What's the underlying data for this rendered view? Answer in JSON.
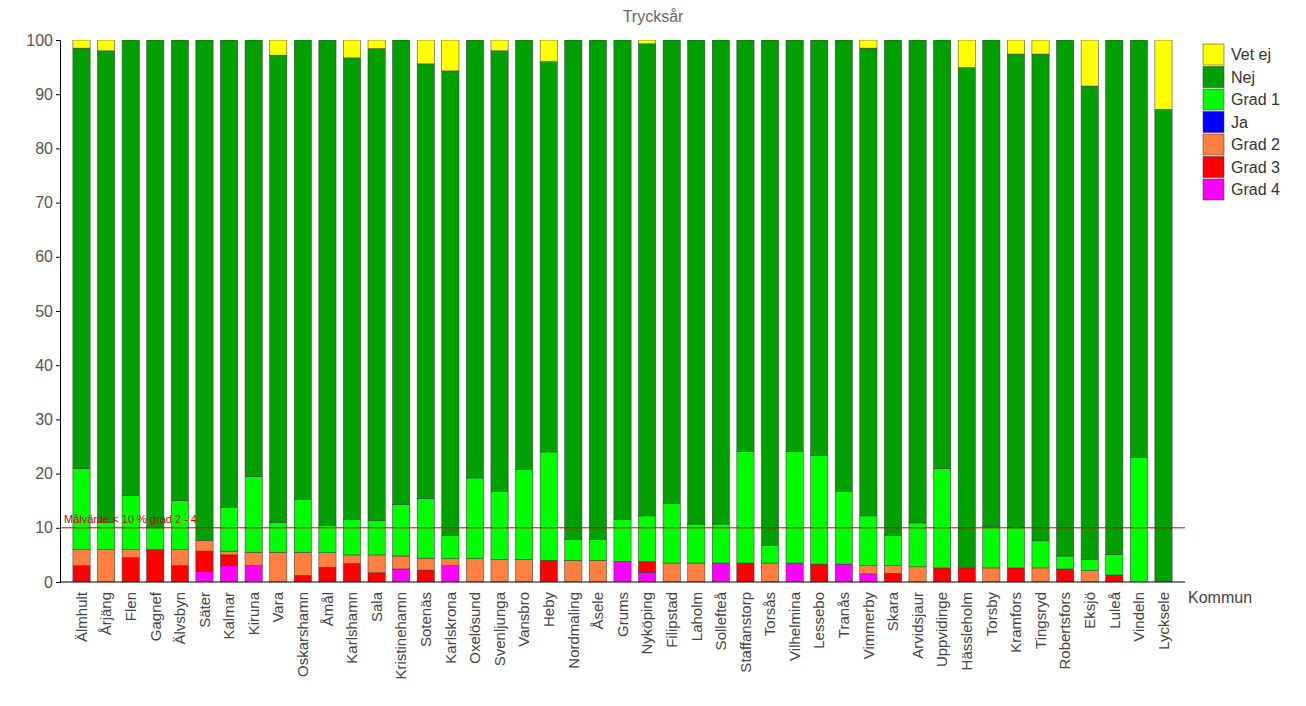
{
  "chart_data": {
    "type": "bar",
    "stacked": true,
    "title": "Trycksår",
    "x_label": "Kommun",
    "legend": "upper right",
    "grid": false,
    "ylim": [
      0,
      100
    ],
    "yticks": [
      0,
      10,
      20,
      30,
      40,
      50,
      60,
      70,
      80,
      90,
      100
    ],
    "annotations": [
      {
        "text": "Målvärde < 10 % grad 2 - 4",
        "y": 10
      }
    ],
    "categories": [
      "Älmhult",
      "Årjäng",
      "Flen",
      "Gagnef",
      "Älvsbyn",
      "Säter",
      "Kalmar",
      "Kiruna",
      "Vara",
      "Oskarshamn",
      "Åmål",
      "Karlshamn",
      "Sala",
      "Kristinehamn",
      "Sotenäs",
      "Karlskrona",
      "Oxelösund",
      "Svenljunga",
      "Vansbro",
      "Heby",
      "Nordmaling",
      "Åsele",
      "Grums",
      "Nyköping",
      "Filipstad",
      "Laholm",
      "Sollefteå",
      "Staffanstorp",
      "Torsås",
      "Vilhelmina",
      "Lessebo",
      "Tranås",
      "Vimmerby",
      "Skara",
      "Arvidsjaur",
      "Uppvidinge",
      "Hässleholm",
      "Torsby",
      "Kramfors",
      "Tingsryd",
      "Robertsfors",
      "Eksjö",
      "Luleå",
      "Vindeln",
      "Lycksele"
    ],
    "series": [
      {
        "name": "Grad 4",
        "color": "#ff00ff",
        "values": [
          0,
          0,
          0,
          0,
          0,
          2,
          3,
          3,
          0,
          0,
          0,
          0,
          0,
          2.4,
          0,
          3,
          0,
          0,
          0,
          0,
          0,
          0,
          3.8,
          1.8,
          0,
          0,
          3.5,
          0,
          0,
          3.5,
          0,
          3.3,
          1.5,
          0,
          0,
          0,
          0,
          0,
          0,
          0,
          0,
          0,
          0,
          0,
          0
        ]
      },
      {
        "name": "Grad 3",
        "color": "#ff0000",
        "values": [
          3,
          0,
          4.5,
          6,
          3,
          3.7,
          2,
          0,
          0,
          1.2,
          2.7,
          3.4,
          1.7,
          0,
          2.2,
          0,
          0,
          0,
          0,
          4,
          0,
          0,
          0,
          2,
          0,
          0,
          0,
          3.5,
          0,
          0,
          3.3,
          0,
          0,
          1.6,
          0,
          2.6,
          2.6,
          0,
          2.6,
          0,
          2.4,
          0,
          1.3,
          0,
          0
        ]
      },
      {
        "name": "Grad 2",
        "color": "#ff8040",
        "values": [
          3,
          6,
          1.5,
          0,
          3,
          2,
          0.7,
          2.5,
          5.5,
          4.3,
          2.7,
          1.6,
          3.3,
          2.4,
          2.2,
          1.3,
          4.3,
          4.2,
          4.2,
          0,
          4,
          4,
          0,
          0,
          3.5,
          3.5,
          0,
          0,
          3.5,
          0,
          0,
          0,
          1.5,
          1.4,
          2.8,
          0,
          0,
          2.6,
          0,
          2.6,
          0,
          2.1,
          0,
          0,
          0
        ]
      },
      {
        "name": "Ja",
        "color": "#0000ff",
        "values": [
          0,
          0,
          0,
          0,
          0,
          0,
          0,
          0,
          0,
          0,
          0,
          0,
          0,
          0,
          0,
          0,
          0,
          0,
          0,
          0,
          0,
          0,
          0,
          0,
          0,
          0,
          0,
          0,
          0,
          0,
          0,
          0,
          0,
          0,
          0,
          0,
          0,
          0,
          0,
          0,
          0,
          0,
          0,
          0,
          0
        ]
      },
      {
        "name": "Grad 1",
        "color": "#00ff00",
        "values": [
          15,
          5,
          10,
          4,
          9,
          0,
          8,
          14,
          5.5,
          9.7,
          5,
          6.6,
          6.4,
          9.5,
          11,
          4.3,
          14.9,
          12.5,
          16.6,
          20,
          3.8,
          3.8,
          7.8,
          8.4,
          11,
          7.2,
          7.2,
          20.6,
          3.3,
          20.6,
          20,
          13.4,
          9.2,
          5.6,
          8.1,
          18.3,
          0,
          7.7,
          7.4,
          5,
          2.4,
          2.1,
          3.8,
          23,
          0
        ]
      },
      {
        "name": "Nej",
        "color": "#00a000",
        "values": [
          77.5,
          87,
          84,
          90,
          85,
          92.3,
          86.3,
          80.5,
          86.2,
          84.8,
          89.6,
          85.1,
          87,
          85.7,
          80.2,
          85.7,
          80.8,
          81.3,
          79.2,
          72,
          92.2,
          92.2,
          88.4,
          87.1,
          85.5,
          89.3,
          89.3,
          75.9,
          93.2,
          75.9,
          76.7,
          83.3,
          86.3,
          91.4,
          89.1,
          79.1,
          92.3,
          89.7,
          87.4,
          89.8,
          95.2,
          87.3,
          94.9,
          77,
          87.2
        ]
      },
      {
        "name": "Vet ej",
        "color": "#ffff00",
        "values": [
          1.5,
          2,
          0,
          0,
          0,
          0,
          0,
          0,
          2.8,
          0,
          0,
          3.3,
          1.6,
          0,
          4.4,
          5.7,
          0,
          2,
          0,
          4,
          0,
          0,
          0,
          0.7,
          0,
          0,
          0,
          0,
          0,
          0,
          0,
          0,
          1.5,
          0,
          0,
          0,
          5.1,
          0,
          2.6,
          2.6,
          0,
          8.5,
          0,
          0,
          12.8
        ]
      }
    ]
  }
}
